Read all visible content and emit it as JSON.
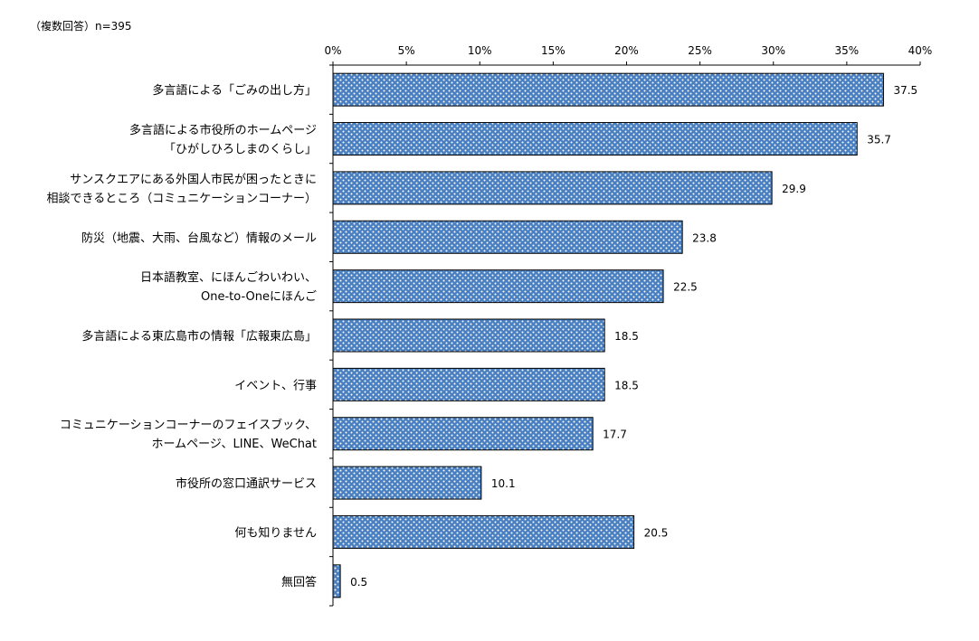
{
  "header_note": "（複数回答）n=395",
  "chart_data": {
    "type": "bar",
    "orientation": "horizontal",
    "xlim": [
      0,
      40
    ],
    "x_ticks": [
      "0%",
      "5%",
      "10%",
      "15%",
      "20%",
      "25%",
      "30%",
      "35%",
      "40%"
    ],
    "x_axis_position": "top",
    "grid": false,
    "bar_color": "#4a7fc0",
    "bar_pattern": "white dots",
    "categories": [
      [
        "多言語による「ごみの出し方」"
      ],
      [
        "多言語による市役所のホームページ",
        "「ひがしひろしまのくらし」"
      ],
      [
        "サンスクエアにある外国人市民が困ったときに",
        "相談できるところ（コミュニケーションコーナー）"
      ],
      [
        "防災（地震、大雨、台風など）情報のメール"
      ],
      [
        "日本語教室、にほんごわいわい、",
        "One-to-Oneにほんご"
      ],
      [
        "多言語による東広島市の情報「広報東広島」"
      ],
      [
        "イベント、行事"
      ],
      [
        "コミュニケーションコーナーのフェイスブック、",
        "ホームページ、LINE、WeChat"
      ],
      [
        "市役所の窓口通訳サービス"
      ],
      [
        "何も知りません"
      ],
      [
        "無回答"
      ]
    ],
    "values": [
      37.5,
      35.7,
      29.9,
      23.8,
      22.5,
      18.5,
      18.5,
      17.7,
      10.1,
      20.5,
      0.5
    ],
    "value_labels": [
      "37.5",
      "35.7",
      "29.9",
      "23.8",
      "22.5",
      "18.5",
      "18.5",
      "17.7",
      "10.1",
      "20.5",
      "0.5"
    ]
  }
}
